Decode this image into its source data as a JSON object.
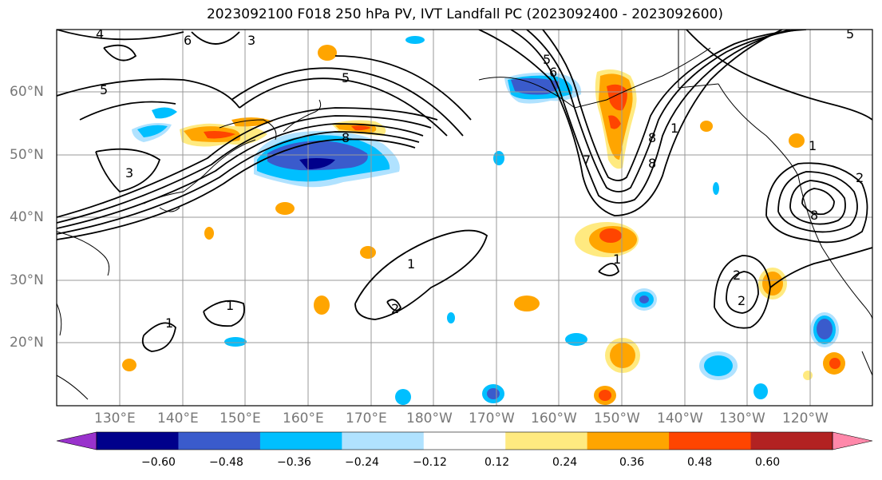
{
  "title": "2023092100 F018 250 hPa PV, IVT Landfall PC (2023092400 - 2023092600)",
  "longitude_labels": [
    "130°E",
    "140°E",
    "150°E",
    "160°E",
    "170°E",
    "180°W",
    "170°W",
    "160°W",
    "150°W",
    "140°W",
    "130°W",
    "120°W"
  ],
  "latitude_labels": [
    "60°N",
    "50°N",
    "40°N",
    "30°N",
    "20°N"
  ],
  "colorbar": {
    "ticks": [
      "−0.60",
      "−0.48",
      "−0.36",
      "−0.24",
      "−0.12",
      "0.12",
      "0.24",
      "0.36",
      "0.48",
      "0.60"
    ],
    "colors": [
      "#9932CC",
      "#00008B",
      "#3A5BCC",
      "#00BFFF",
      "#B0E2FF",
      "#FFFFFF",
      "#FFEA80",
      "#FFA500",
      "#FF4500",
      "#B22222",
      "#FF88AA"
    ]
  },
  "contour_labels": [
    "4",
    "6",
    "3",
    "5",
    "5",
    "3",
    "5",
    "6",
    "7",
    "8",
    "1",
    "8",
    "1",
    "1",
    "8",
    "1",
    "2",
    "1",
    "1",
    "2",
    "2",
    "2",
    "8",
    "5"
  ],
  "colors": {
    "grid": "#999999",
    "contour": "#000000",
    "coast": "#000000"
  }
}
